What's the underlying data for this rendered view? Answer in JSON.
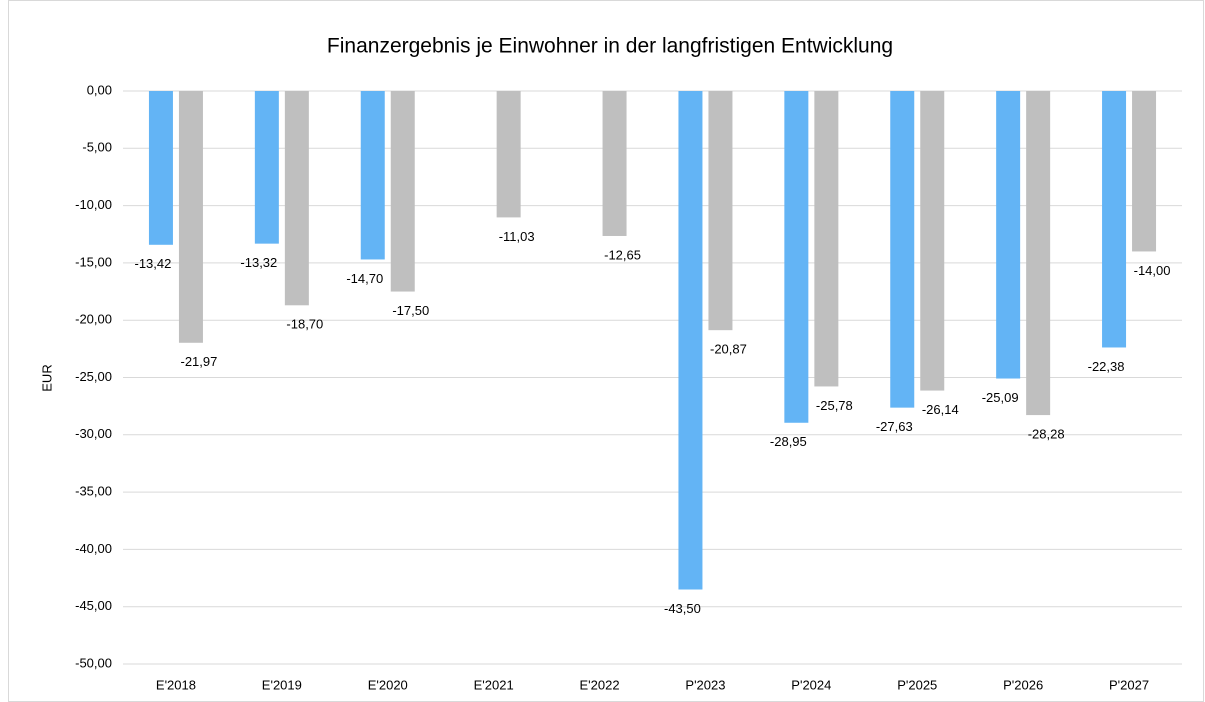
{
  "chart_data": {
    "type": "bar",
    "title": "Finanzergebnis je Einwohner in der langfristigen Entwicklung",
    "y_label": "EUR",
    "categories": [
      "E'2018",
      "E'2019",
      "E'2020",
      "E'2021",
      "E'2022",
      "P'2023",
      "P'2024",
      "P'2025",
      "P'2026",
      "P'2027"
    ],
    "series": [
      {
        "color": "#63b4f5",
        "values": [
          -13.42,
          -13.32,
          -14.7,
          null,
          null,
          -43.5,
          -28.95,
          -27.63,
          -25.09,
          -22.38
        ],
        "value_labels": [
          "-13,42",
          "-13,32",
          "-14,70",
          null,
          null,
          "-43,50",
          "-28,95",
          "-27,63",
          "-25,09",
          "-22,38"
        ]
      },
      {
        "color": "#bfbfbf",
        "values": [
          -21.97,
          -18.7,
          -17.5,
          -11.03,
          -12.65,
          -20.87,
          -25.78,
          -26.14,
          -28.28,
          -14.0
        ],
        "value_labels": [
          "-21,97",
          "-18,70",
          "-17,50",
          "-11,03",
          "-12,65",
          "-20,87",
          "-25,78",
          "-26,14",
          "-28,28",
          "-14,00"
        ]
      }
    ],
    "ylim": [
      -50,
      0
    ],
    "yticks": [
      {
        "value": 0,
        "label": "0,00"
      },
      {
        "value": -5,
        "label": "-5,00"
      },
      {
        "value": -10,
        "label": "-10,00"
      },
      {
        "value": -15,
        "label": "-15,00"
      },
      {
        "value": -20,
        "label": "-20,00"
      },
      {
        "value": -25,
        "label": "-25,00"
      },
      {
        "value": -30,
        "label": "-30,00"
      },
      {
        "value": -35,
        "label": "-35,00"
      },
      {
        "value": -40,
        "label": "-40,00"
      },
      {
        "value": -45,
        "label": "-45,00"
      },
      {
        "value": -50,
        "label": "-50,00"
      }
    ],
    "grid": true
  }
}
